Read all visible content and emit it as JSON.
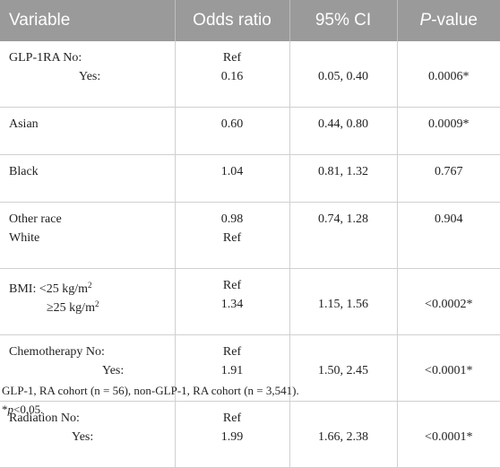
{
  "header": {
    "variable": "Variable",
    "odds_ratio": "Odds ratio",
    "ci": "95% CI",
    "p_value_p": "P",
    "p_value_rest": "-value"
  },
  "rows": [
    {
      "var": [
        "GLP-1RA No:",
        "Yes:"
      ],
      "or": [
        "Ref",
        "0.16"
      ],
      "ci": [
        "",
        "0.05, 0.40"
      ],
      "p": [
        "",
        "0.0006*"
      ]
    },
    {
      "var": [
        "Asian"
      ],
      "or": [
        "0.60"
      ],
      "ci": [
        "0.44, 0.80"
      ],
      "p": [
        "0.0009*"
      ]
    },
    {
      "var": [
        "Black"
      ],
      "or": [
        "1.04"
      ],
      "ci": [
        "0.81, 1.32"
      ],
      "p": [
        "0.767"
      ]
    },
    {
      "var": [
        "Other race",
        "White"
      ],
      "or": [
        "0.98",
        "Ref"
      ],
      "ci": [
        "0.74, 1.28",
        ""
      ],
      "p": [
        "0.904",
        ""
      ]
    },
    {
      "var": [
        "BMI: <25 kg/m",
        "≥25 kg/m"
      ],
      "sup": "2",
      "or": [
        "Ref",
        "1.34"
      ],
      "ci": [
        "",
        "1.15, 1.56"
      ],
      "p": [
        "",
        "<0.0002*"
      ]
    },
    {
      "var": [
        "Chemotherapy No:",
        "Yes:"
      ],
      "or": [
        "Ref",
        "1.91"
      ],
      "ci": [
        "",
        "1.50, 2.45"
      ],
      "p": [
        "",
        "<0.0001*"
      ]
    },
    {
      "var": [
        "Radiation No:",
        "Yes:"
      ],
      "or": [
        "Ref",
        "1.99"
      ],
      "ci": [
        "",
        "1.66, 2.38"
      ],
      "p": [
        "",
        "<0.0001*"
      ]
    }
  ],
  "footnotes": {
    "line1": "GLP-1, RA cohort (n = 56), non-GLP-1, RA cohort (n = 3,541).",
    "line2_prefix": "*",
    "line2_p": "p",
    "line2_rest": "<0.05."
  }
}
